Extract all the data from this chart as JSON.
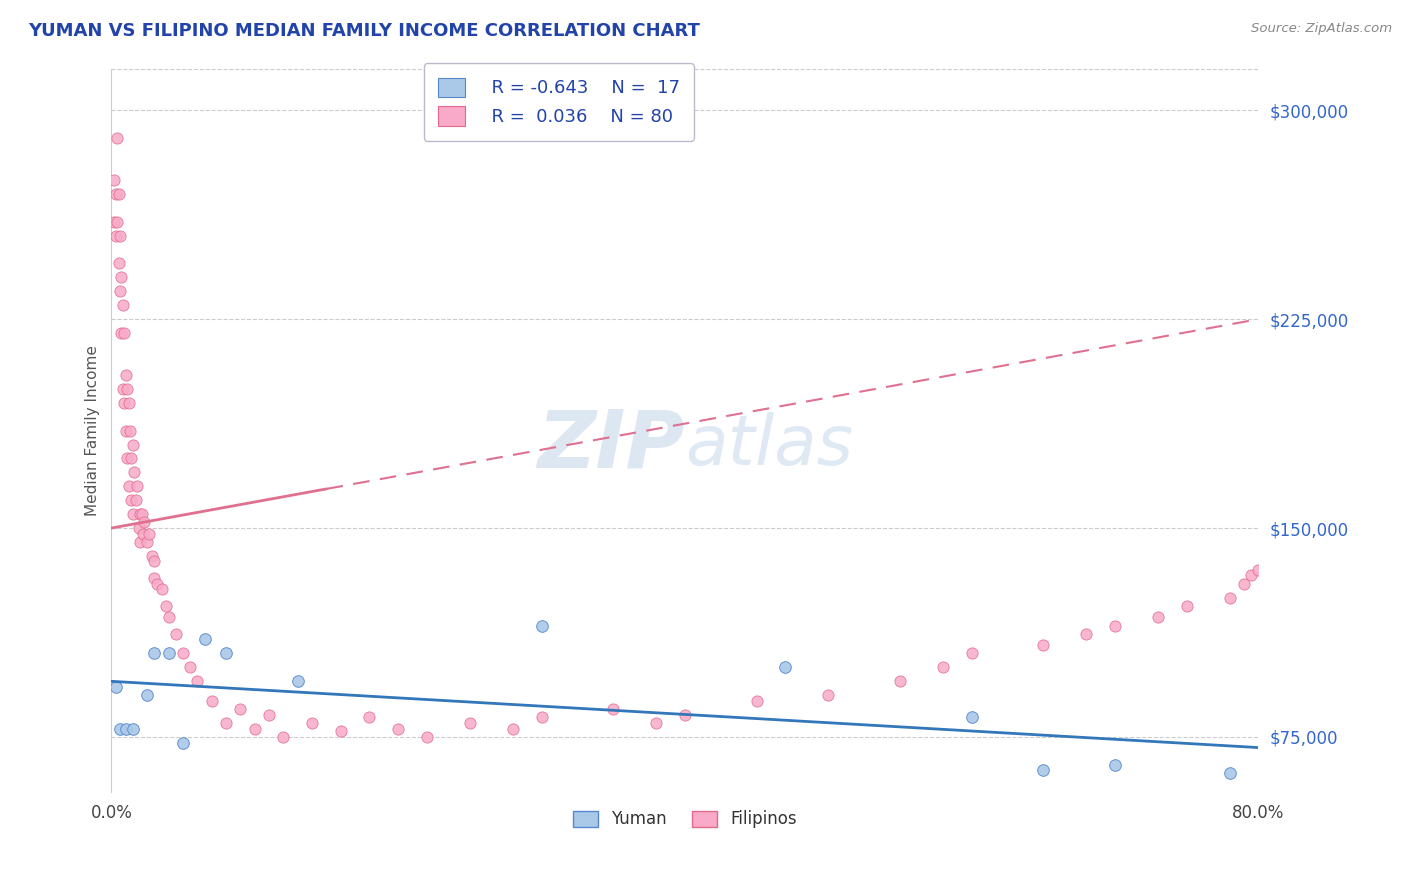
{
  "title": "YUMAN VS FILIPINO MEDIAN FAMILY INCOME CORRELATION CHART",
  "source": "Source: ZipAtlas.com",
  "ylabel": "Median Family Income",
  "yticks": [
    75000,
    150000,
    225000,
    300000
  ],
  "ytick_labels": [
    "$75,000",
    "$150,000",
    "$225,000",
    "$300,000"
  ],
  "xlim": [
    0.0,
    80.0
  ],
  "ylim": [
    55000,
    315000
  ],
  "yuman_color": "#aac8e8",
  "yuman_edge_color": "#5588cc",
  "filipino_color": "#f8aac8",
  "filipino_edge_color": "#e06888",
  "yuman_line_color": "#3377bb",
  "filipino_line_color": "#e07090",
  "watermark_zip": "ZIP",
  "watermark_atlas": "atlas",
  "watermark_color": "#c5d8ea",
  "title_color": "#2244aa",
  "tick_color": "#3366cc",
  "source_color": "#888888",
  "yuman_x": [
    0.3,
    0.6,
    1.0,
    1.5,
    2.5,
    3.0,
    4.0,
    5.0,
    6.5,
    8.0,
    13.0,
    30.0,
    47.0,
    60.0,
    65.0,
    70.0,
    78.0
  ],
  "yuman_y": [
    93000,
    78000,
    78000,
    78000,
    90000,
    105000,
    105000,
    73000,
    110000,
    105000,
    95000,
    115000,
    100000,
    82000,
    63000,
    65000,
    62000
  ],
  "filipino_x": [
    0.2,
    0.2,
    0.3,
    0.3,
    0.4,
    0.4,
    0.5,
    0.5,
    0.6,
    0.6,
    0.7,
    0.7,
    0.8,
    0.8,
    0.9,
    0.9,
    1.0,
    1.0,
    1.1,
    1.1,
    1.2,
    1.2,
    1.3,
    1.4,
    1.4,
    1.5,
    1.5,
    1.6,
    1.7,
    1.8,
    1.9,
    2.0,
    2.0,
    2.1,
    2.2,
    2.3,
    2.5,
    2.6,
    2.8,
    3.0,
    3.0,
    3.2,
    3.5,
    3.8,
    4.0,
    4.5,
    5.0,
    5.5,
    6.0,
    7.0,
    8.0,
    9.0,
    10.0,
    11.0,
    12.0,
    14.0,
    16.0,
    18.0,
    20.0,
    22.0,
    25.0,
    28.0,
    30.0,
    35.0,
    38.0,
    40.0,
    45.0,
    50.0,
    55.0,
    58.0,
    60.0,
    65.0,
    68.0,
    70.0,
    73.0,
    75.0,
    78.0,
    79.0,
    79.5,
    80.0
  ],
  "filipino_y": [
    260000,
    275000,
    270000,
    255000,
    290000,
    260000,
    270000,
    245000,
    255000,
    235000,
    240000,
    220000,
    230000,
    200000,
    220000,
    195000,
    205000,
    185000,
    200000,
    175000,
    195000,
    165000,
    185000,
    175000,
    160000,
    180000,
    155000,
    170000,
    160000,
    165000,
    150000,
    155000,
    145000,
    155000,
    148000,
    152000,
    145000,
    148000,
    140000,
    138000,
    132000,
    130000,
    128000,
    122000,
    118000,
    112000,
    105000,
    100000,
    95000,
    88000,
    80000,
    85000,
    78000,
    83000,
    75000,
    80000,
    77000,
    82000,
    78000,
    75000,
    80000,
    78000,
    82000,
    85000,
    80000,
    83000,
    88000,
    90000,
    95000,
    100000,
    105000,
    108000,
    112000,
    115000,
    118000,
    122000,
    125000,
    130000,
    133000,
    135000
  ]
}
